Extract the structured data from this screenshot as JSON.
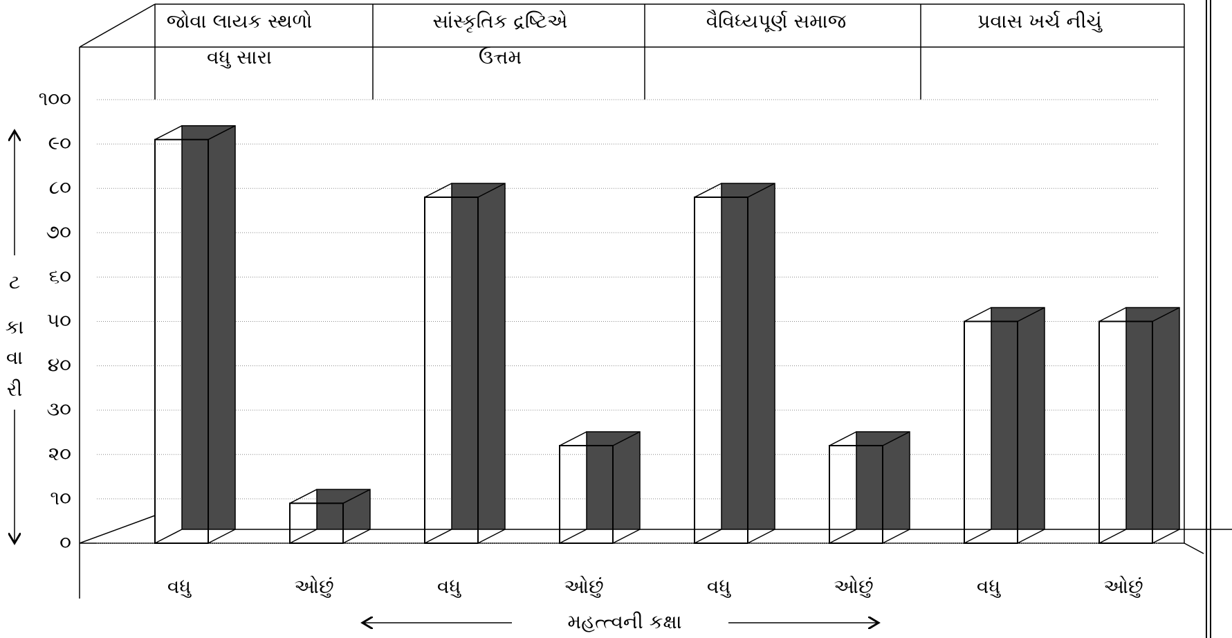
{
  "chart_data": {
    "type": "bar3d",
    "groups": [
      [
        "જોવા લાયક સ્થળો",
        "વધુ સારા"
      ],
      [
        "સાંસ્કૃતિક દ્રષ્ટિએ",
        "ઉત્તમ"
      ],
      [
        "વૈવિધ્યપૂર્ણ સમાજ"
      ],
      [
        "પ્રવાસ ખર્ચ નીચું"
      ]
    ],
    "categories": [
      "વધુ",
      "ઓછું",
      "વધુ",
      "ઓછું",
      "વધુ",
      "ઓછું",
      "વધુ",
      "ઓછું"
    ],
    "values": [
      91,
      9,
      78,
      22,
      78,
      22,
      50,
      50
    ],
    "color": "#4a4a4a",
    "xlabel": "મહત્ત્વની કક્ષા",
    "ylabel": [
      "ટ",
      "કા",
      "વા",
      "રી"
    ],
    "ylim": [
      0,
      100
    ],
    "yticks": [
      {
        "value": 0,
        "label": "૦"
      },
      {
        "value": 10,
        "label": "૧૦"
      },
      {
        "value": 20,
        "label": "૨૦"
      },
      {
        "value": 30,
        "label": "૩૦"
      },
      {
        "value": 40,
        "label": "૪૦"
      },
      {
        "value": 50,
        "label": "૫૦"
      },
      {
        "value": 60,
        "label": "૬૦"
      },
      {
        "value": 70,
        "label": "૭૦"
      },
      {
        "value": 80,
        "label": "૮૦"
      },
      {
        "value": 90,
        "label": "૯૦"
      },
      {
        "value": 100,
        "label": "૧૦૦"
      }
    ],
    "grid": true
  }
}
